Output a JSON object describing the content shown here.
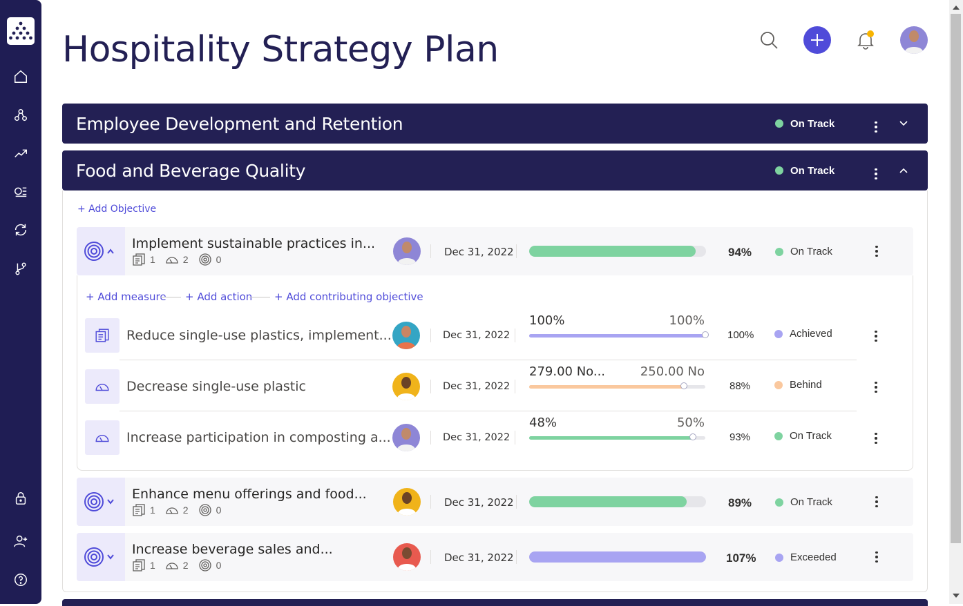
{
  "app": {
    "title": "Hospitality Strategy Plan"
  },
  "sidebar": {
    "logo": "logo-icon",
    "items": [
      "home-icon",
      "hierarchy-icon",
      "trend-icon",
      "list-icon",
      "sync-icon",
      "branch-icon"
    ],
    "bottom": [
      "lock-icon",
      "add-user-icon",
      "help-icon"
    ]
  },
  "header": {
    "search": "search-icon",
    "add": "add-icon",
    "notifications": "bell-icon"
  },
  "colors": {
    "navy": "#232054",
    "accent": "#4f4bd9",
    "green": "#7ed3a0",
    "orange": "#fac89e",
    "purple": "#a8a4f2"
  },
  "sections": [
    {
      "title": "Employee Development and Retention",
      "status": "On Track"
    },
    {
      "title": "Food and Beverage Quality",
      "status": "On Track"
    }
  ],
  "add_objective": "+ Add Objective",
  "objectives": [
    {
      "title": "Implement sustainable practices in...",
      "counts": [
        "1",
        "2",
        "0"
      ],
      "date": "Dec 31, 2022",
      "progress": 94,
      "pct": "94%",
      "status": "On Track",
      "add_links": [
        "+ Add measure",
        "+ Add action",
        "+ Add contributing objective"
      ],
      "measures": [
        {
          "title": "Reduce single-use plastics, implement...",
          "date": "Dec 31, 2022",
          "current": "100%",
          "target": "100%",
          "pct": "100%",
          "status": "Achieved",
          "progress": 100
        },
        {
          "title": "Decrease single-use plastic",
          "date": "Dec 31, 2022",
          "current": "279.00 No...",
          "target": "250.00 No",
          "pct": "88%",
          "status": "Behind",
          "progress": 88
        },
        {
          "title": "Increase participation in composting a...",
          "date": "Dec 31, 2022",
          "current": "48%",
          "target": "50%",
          "pct": "93%",
          "status": "On Track",
          "progress": 93
        }
      ]
    },
    {
      "title": "Enhance menu offerings and food...",
      "counts": [
        "1",
        "2",
        "0"
      ],
      "date": "Dec 31, 2022",
      "progress": 89,
      "pct": "89%",
      "status": "On Track"
    },
    {
      "title": "Increase beverage sales and...",
      "counts": [
        "1",
        "2",
        "0"
      ],
      "date": "Dec 31, 2022",
      "progress": 100,
      "pct": "107%",
      "status": "Exceeded"
    }
  ]
}
